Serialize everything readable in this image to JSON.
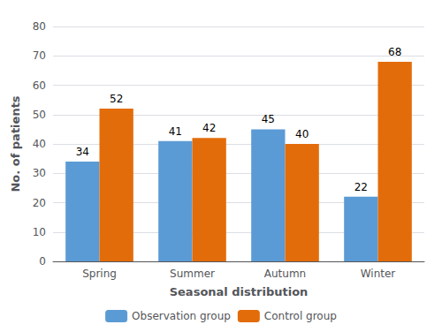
{
  "chart_data": {
    "type": "bar",
    "categories": [
      "Spring",
      "Summer",
      "Autumn",
      "Winter"
    ],
    "series": [
      {
        "name": "Observation group",
        "color": "#5B9BD5",
        "values": [
          34,
          41,
          45,
          22
        ]
      },
      {
        "name": "Control group",
        "color": "#E36C0A",
        "values": [
          52,
          42,
          40,
          68
        ]
      }
    ],
    "xlabel": "Seasonal distribution",
    "ylabel": "No. of patients",
    "ylim": [
      0,
      80
    ],
    "yticks": [
      0,
      10,
      20,
      30,
      40,
      50,
      60,
      70,
      80
    ],
    "grid": true,
    "data_labels": true,
    "legend": "bottom"
  }
}
